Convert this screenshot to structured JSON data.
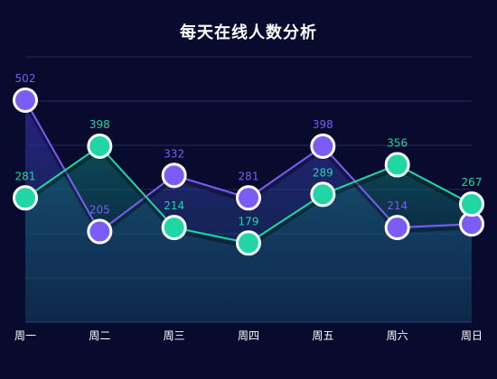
{
  "chart_data": {
    "type": "line",
    "title": "每天在线人数分析",
    "categories": [
      "周一",
      "周二",
      "周三",
      "周四",
      "周五",
      "周六",
      "周日"
    ],
    "ylim": [
      0,
      600
    ],
    "grid": true,
    "series": [
      {
        "values": [
          502,
          205,
          332,
          281,
          398,
          214,
          222
        ],
        "labels": [
          "502",
          "205",
          "332",
          "281",
          "398",
          "214",
          ""
        ],
        "color": "#7b5cf5",
        "fill_top": "#3a2bb0",
        "fill_bottom": "#1a5a7a"
      },
      {
        "values": [
          281,
          398,
          214,
          179,
          289,
          356,
          267
        ],
        "labels": [
          "281",
          "398",
          "214",
          "179",
          "289",
          "356",
          "267"
        ],
        "color": "#1fd6a4",
        "fill_top": "#0f6e6a",
        "fill_bottom": "#0f3f63"
      }
    ]
  },
  "colors": {
    "background": "#080b2e",
    "grid": "#26295a",
    "axis": "#3a3d70"
  }
}
